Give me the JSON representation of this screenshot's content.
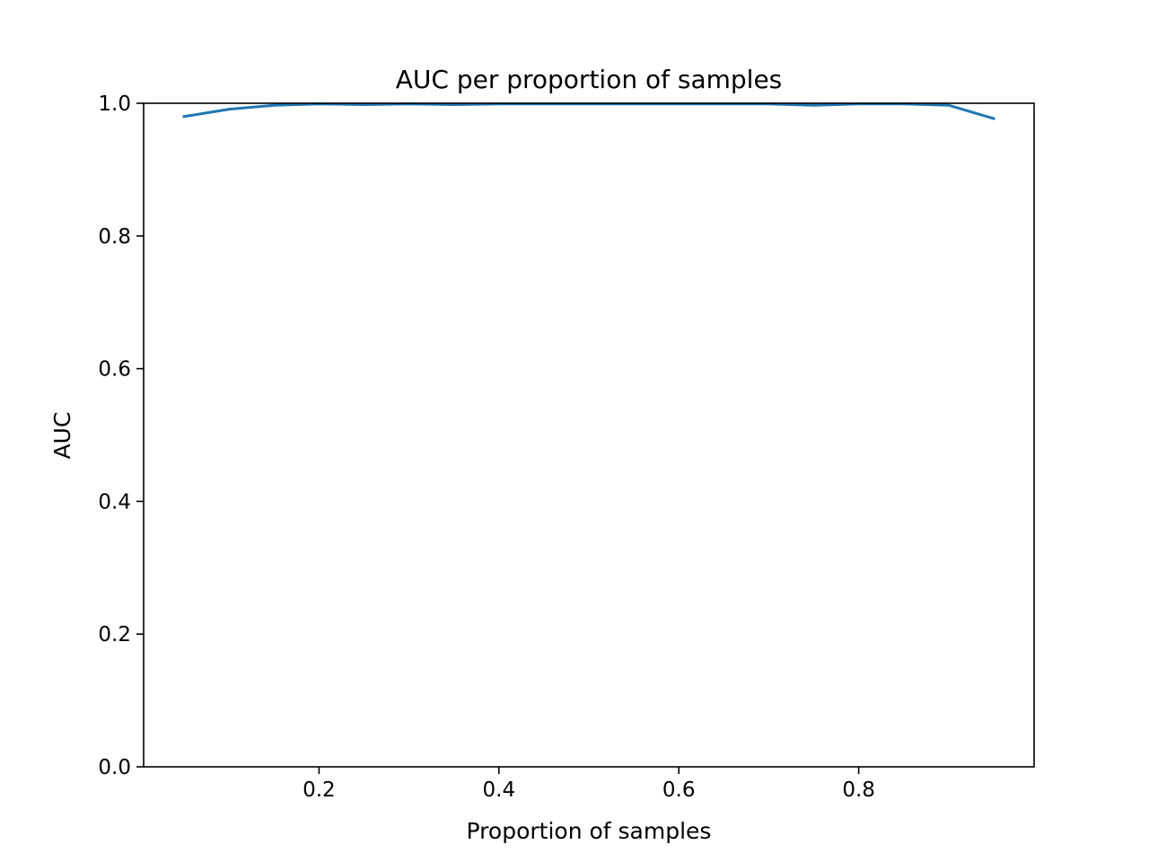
{
  "chart_data": {
    "type": "line",
    "title": "AUC per proportion of samples",
    "xlabel": "Proportion of samples",
    "ylabel": "AUC",
    "xlim": [
      0.005,
      0.995
    ],
    "ylim": [
      0.0,
      1.0
    ],
    "xticks": [
      0.2,
      0.4,
      0.6,
      0.8
    ],
    "xtick_labels": [
      "0.2",
      "0.4",
      "0.6",
      "0.8"
    ],
    "yticks": [
      0.0,
      0.2,
      0.4,
      0.6,
      0.8,
      1.0
    ],
    "ytick_labels": [
      "0.0",
      "0.2",
      "0.4",
      "0.6",
      "0.8",
      "1.0"
    ],
    "grid": false,
    "legend": "none",
    "series": [
      {
        "color": "#1f77b4",
        "x": [
          0.05,
          0.1,
          0.15,
          0.2,
          0.25,
          0.3,
          0.35,
          0.4,
          0.45,
          0.5,
          0.55,
          0.6,
          0.65,
          0.7,
          0.75,
          0.8,
          0.85,
          0.9,
          0.95
        ],
        "y": [
          0.98,
          0.991,
          0.997,
          0.999,
          0.998,
          0.999,
          0.998,
          0.999,
          0.999,
          0.999,
          0.999,
          0.999,
          0.999,
          0.999,
          0.997,
          0.999,
          0.999,
          0.997,
          0.977
        ]
      }
    ]
  }
}
